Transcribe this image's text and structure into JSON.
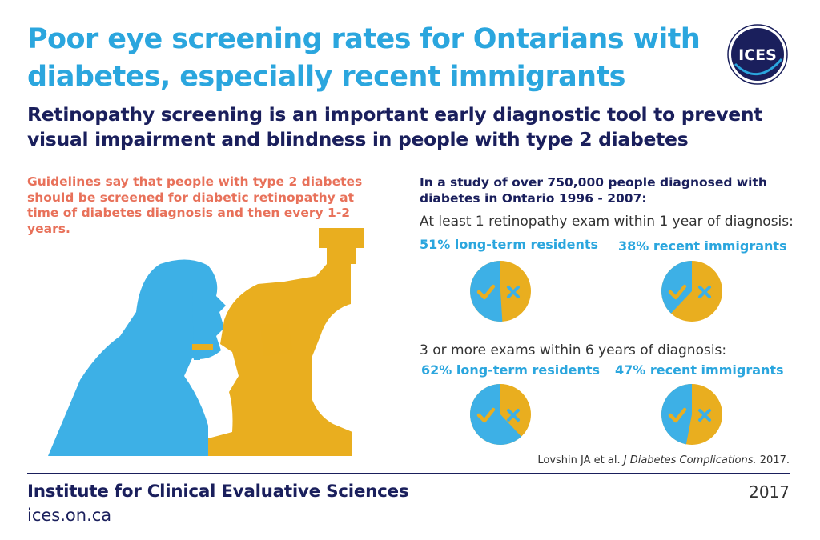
{
  "header": {
    "title": "Poor eye screening rates for Ontarians with diabetes, especially recent immigrants",
    "subtitle": "Retinopathy screening is an important early diagnostic tool to prevent visual impairment and blindness in people with type 2 diabetes",
    "logo_text": "ICES"
  },
  "left_panel": {
    "guidelines": "Guidelines say that people with type 2 diabetes should be screened for diabetic retinopathy at time of diabetes diagnosis and then every 1-2 years.",
    "illustration_icon": "eye-exam-slit-lamp-illustration"
  },
  "study": {
    "intro": "In a study of over 750,000 people diagnosed with diabetes in Ontario 1996 - 2007:"
  },
  "colors": {
    "screened": "#3db0e6",
    "not_screened": "#e9ae1f",
    "title_blue": "#2ba6de",
    "navy": "#1a1f5c",
    "salmon": "#e8715a"
  },
  "chart_data": [
    {
      "type": "pie",
      "title": "At least 1 retinopathy exam within 1 year of diagnosis:",
      "series": [
        {
          "name": "long-term residents",
          "label": "51% long-term residents",
          "value": 51
        },
        {
          "name": "recent immigrants",
          "label": "38% recent immigrants",
          "value": 38
        }
      ],
      "slice_icons": [
        "check-icon",
        "x-icon"
      ]
    },
    {
      "type": "pie",
      "title": "3 or more exams within 6 years of diagnosis:",
      "series": [
        {
          "name": "long-term residents",
          "label": "62% long-term residents",
          "value": 62
        },
        {
          "name": "recent immigrants",
          "label": "47% recent immigrants",
          "value": 47
        }
      ],
      "slice_icons": [
        "check-icon",
        "x-icon"
      ]
    }
  ],
  "citation": {
    "authors": "Lovshin JA et al. ",
    "journal": "J Diabetes Complications.",
    "year": " 2017."
  },
  "footer": {
    "org": "Institute for Clinical Evaluative Sciences",
    "website": "ices.on.ca",
    "year": "2017"
  }
}
